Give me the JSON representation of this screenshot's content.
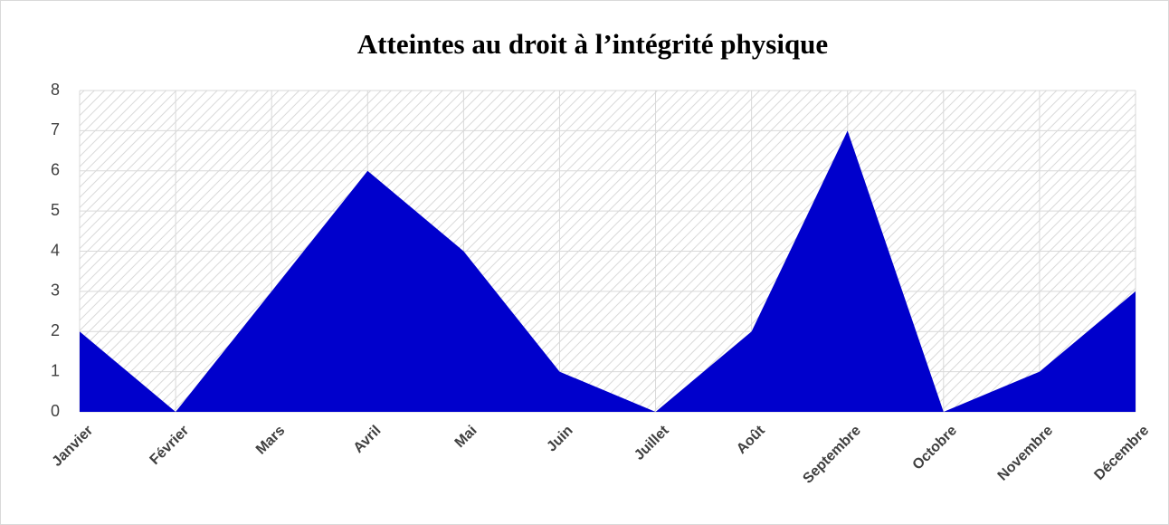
{
  "chart_data": {
    "type": "area",
    "title": "Atteintes au droit à l’intégrité physique",
    "categories": [
      "Janvier",
      "Février",
      "Mars",
      "Avril",
      "Mai",
      "Juin",
      "Juillet",
      "Août",
      "Septembre",
      "Octobre",
      "Novembre",
      "Décembre"
    ],
    "values": [
      2,
      0,
      3,
      6,
      4,
      1,
      0,
      2,
      7,
      0,
      1,
      3
    ],
    "color": "#0000cc",
    "ylim": [
      0,
      8
    ],
    "yticks": [
      0,
      1,
      2,
      3,
      4,
      5,
      6,
      7,
      8
    ],
    "grid": true
  }
}
